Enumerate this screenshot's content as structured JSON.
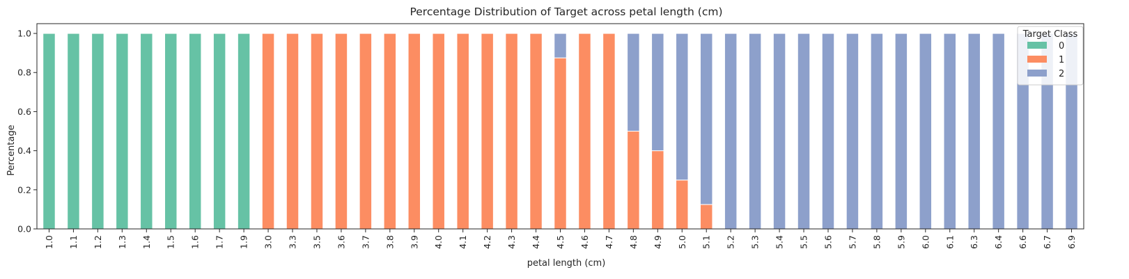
{
  "chart_data": {
    "type": "bar",
    "stacked": true,
    "title": "Percentage Distribution of Target across petal length (cm)",
    "xlabel": "petal length (cm)",
    "ylabel": "Percentage",
    "ylim": [
      0,
      1.05
    ],
    "yticks": [
      "0.0",
      "0.2",
      "0.4",
      "0.6",
      "0.8",
      "1.0"
    ],
    "grid": false,
    "legend_position": "top-right",
    "legend_title": "Target Class",
    "categories": [
      "1.0",
      "1.1",
      "1.2",
      "1.3",
      "1.4",
      "1.5",
      "1.6",
      "1.7",
      "1.9",
      "3.0",
      "3.3",
      "3.5",
      "3.6",
      "3.7",
      "3.8",
      "3.9",
      "4.0",
      "4.1",
      "4.2",
      "4.3",
      "4.4",
      "4.5",
      "4.6",
      "4.7",
      "4.8",
      "4.9",
      "5.0",
      "5.1",
      "5.2",
      "5.3",
      "5.4",
      "5.5",
      "5.6",
      "5.7",
      "5.8",
      "5.9",
      "6.0",
      "6.1",
      "6.3",
      "6.4",
      "6.6",
      "6.7",
      "6.9"
    ],
    "series": [
      {
        "name": "0",
        "color": "#66c2a5",
        "values": [
          1,
          1,
          1,
          1,
          1,
          1,
          1,
          1,
          1,
          0,
          0,
          0,
          0,
          0,
          0,
          0,
          0,
          0,
          0,
          0,
          0,
          0,
          0,
          0,
          0,
          0,
          0,
          0,
          0,
          0,
          0,
          0,
          0,
          0,
          0,
          0,
          0,
          0,
          0,
          0,
          0,
          0,
          0
        ]
      },
      {
        "name": "1",
        "color": "#fc8d62",
        "values": [
          0,
          0,
          0,
          0,
          0,
          0,
          0,
          0,
          0,
          1,
          1,
          1,
          1,
          1,
          1,
          1,
          1,
          1,
          1,
          1,
          1,
          0.875,
          1,
          1,
          0.5,
          0.4,
          0.25,
          0.125,
          0,
          0,
          0,
          0,
          0,
          0,
          0,
          0,
          0,
          0,
          0,
          0,
          0,
          0,
          0
        ]
      },
      {
        "name": "2",
        "color": "#8da0cb",
        "values": [
          0,
          0,
          0,
          0,
          0,
          0,
          0,
          0,
          0,
          0,
          0,
          0,
          0,
          0,
          0,
          0,
          0,
          0,
          0,
          0,
          0,
          0.125,
          0,
          0,
          0.5,
          0.6,
          0.75,
          0.875,
          1,
          1,
          1,
          1,
          1,
          1,
          1,
          1,
          1,
          1,
          1,
          1,
          1,
          1,
          1
        ]
      }
    ]
  }
}
